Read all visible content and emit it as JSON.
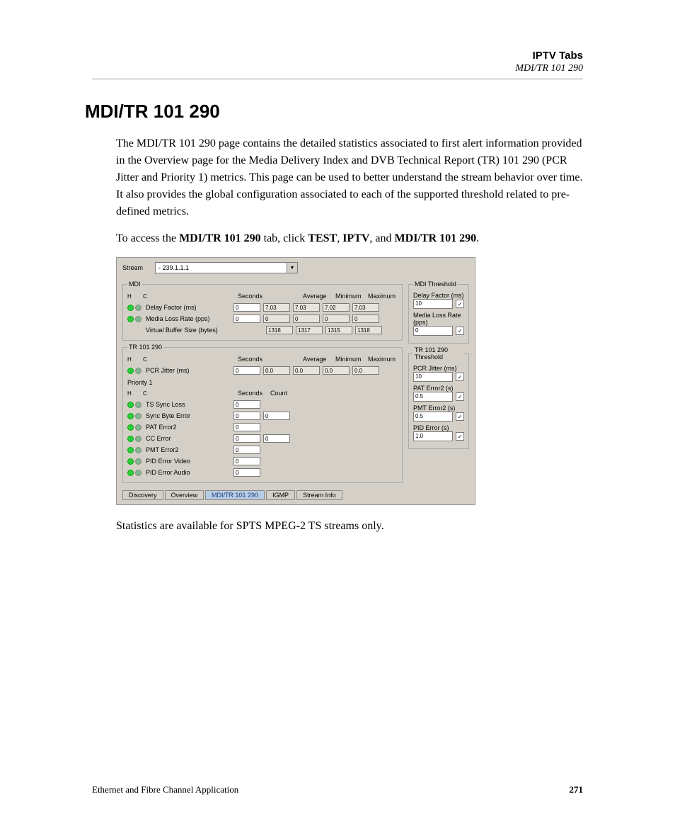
{
  "header": {
    "title": "IPTV Tabs",
    "subtitle": "MDI/TR 101 290"
  },
  "h1": "MDI/TR 101 290",
  "para1": "The MDI/TR 101 290 page contains the detailed statistics associated to first alert information provided in the Overview page for the Media Delivery Index and DVB Technical Report (TR) 101 290 (PCR Jitter and Priority 1) metrics. This page can be used to better understand the stream behavior over time. It also provides the global configuration associated to each of the supported threshold related to pre-defined metrics.",
  "para2_pre": "To access the ",
  "para2_b1": "MDI/TR 101 290",
  "para2_mid1": " tab, click ",
  "para2_b2": "TEST",
  "para2_mid2": ", ",
  "para2_b3": "IPTV",
  "para2_mid3": ", and ",
  "para2_b4": "MDI/TR 101 290",
  "para2_end": ".",
  "para3": "Statistics are available for SPTS MPEG-2 TS streams only.",
  "footer": {
    "left": "Ethernet and Fibre Channel Application",
    "page": "271"
  },
  "ui": {
    "stream_label": "Stream",
    "stream_value": "- 239.1.1.1",
    "hc_h": "H",
    "hc_c": "C",
    "seconds_hdr": "Seconds",
    "count_hdr": "Count",
    "avg_hdr": "Average",
    "min_hdr": "Minimum",
    "max_hdr": "Maximum",
    "mdi": {
      "legend": "MDI",
      "rows": [
        {
          "label": "Delay Factor (ms)",
          "sec": "0",
          "v2": "7.03",
          "avg": "7.03",
          "min": "7.02",
          "max": "7.03"
        },
        {
          "label": "Media Loss Rate (pps)",
          "sec": "0",
          "v2": "0",
          "avg": "0",
          "min": "0",
          "max": "0"
        },
        {
          "label": "Virtual Buffer Size (bytes)",
          "sec": "",
          "v2": "1318",
          "avg": "1317",
          "min": "1315",
          "max": "1318"
        }
      ]
    },
    "mdi_thr": {
      "legend": "MDI Threshold",
      "items": [
        {
          "label": "Delay Factor (ms)",
          "val": "10",
          "chk": true
        },
        {
          "label": "Media Loss Rate (pps)",
          "val": "0",
          "chk": true
        }
      ]
    },
    "tr": {
      "legend": "TR 101 290",
      "pcr": {
        "label": "PCR Jitter (ms)",
        "sec": "0",
        "v2": "0.0",
        "avg": "0.0",
        "min": "0.0",
        "max": "0.0"
      },
      "priority_label": "Priority 1",
      "rows": [
        {
          "label": "TS Sync Loss",
          "sec": "0",
          "count": ""
        },
        {
          "label": "Sync Byte Error",
          "sec": "0",
          "count": "0"
        },
        {
          "label": "PAT Error2",
          "sec": "0",
          "count": ""
        },
        {
          "label": "CC Error",
          "sec": "0",
          "count": "0"
        },
        {
          "label": "PMT Error2",
          "sec": "0",
          "count": ""
        },
        {
          "label": "PID Error Video",
          "sec": "0",
          "count": ""
        },
        {
          "label": "PID Error Audio",
          "sec": "0",
          "count": ""
        }
      ]
    },
    "tr_thr": {
      "legend": "TR 101 290 Threshold",
      "items": [
        {
          "label": "PCR Jitter (ms)",
          "val": "10",
          "chk": true
        },
        {
          "label": "PAT Error2 (s)",
          "val": "0.5",
          "chk": true
        },
        {
          "label": "PMT Error2 (s)",
          "val": "0.5",
          "chk": true
        },
        {
          "label": "PID Error (s)",
          "val": "1.0",
          "chk": true
        }
      ]
    },
    "tabs": [
      "Discovery",
      "Overview",
      "MDI/TR 101 290",
      "IGMP",
      "Stream Info"
    ],
    "active_tab": 2
  },
  "colors": {
    "page_bg": "#ffffff",
    "ui_bg": "#d4d0c8",
    "field_bg": "#ffffff",
    "led_green": "#2ecc40",
    "tab_active_bg": "#b8cce4"
  }
}
